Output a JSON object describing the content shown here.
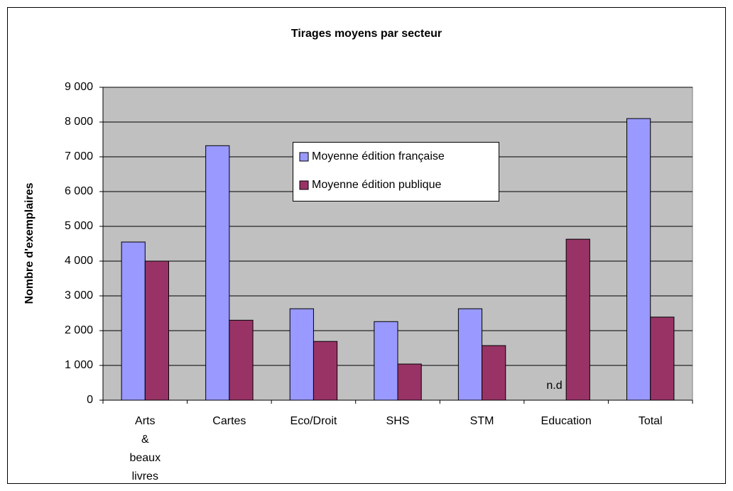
{
  "chart_data": {
    "type": "bar",
    "title": "Tirages moyens par secteur",
    "ylabel": "Nombre d'exemplaires",
    "categories": [
      "Arts & beaux livres",
      "Cartes",
      "Eco/Droit",
      "SHS",
      "STM",
      "Education",
      "Total"
    ],
    "series": [
      {
        "name": "Moyenne édition française",
        "color": "#9999ff",
        "values": [
          4550,
          7320,
          2630,
          2260,
          2630,
          null,
          8100
        ],
        "value_labels": [
          null,
          null,
          null,
          null,
          null,
          "n.d",
          null
        ]
      },
      {
        "name": "Moyenne édition publique",
        "color": "#993366",
        "values": [
          4000,
          2300,
          1690,
          1040,
          1570,
          4630,
          2390
        ]
      }
    ],
    "ylim": [
      0,
      9000
    ],
    "yticks": [
      0,
      {
        "value": 1000,
        "label": "1 000"
      },
      {
        "value": 2000,
        "label": "2 000"
      },
      {
        "value": 3000,
        "label": "3 000"
      },
      {
        "value": 4000,
        "label": "4 000"
      },
      {
        "value": 5000,
        "label": "5 000"
      },
      {
        "value": 6000,
        "label": "6 000"
      },
      {
        "value": 7000,
        "label": "7 000"
      },
      {
        "value": 8000,
        "label": "8 000"
      },
      {
        "value": 9000,
        "label": "9 000"
      }
    ],
    "grid": true,
    "legend": "top-center",
    "plot_background": "#c0c0c0"
  }
}
